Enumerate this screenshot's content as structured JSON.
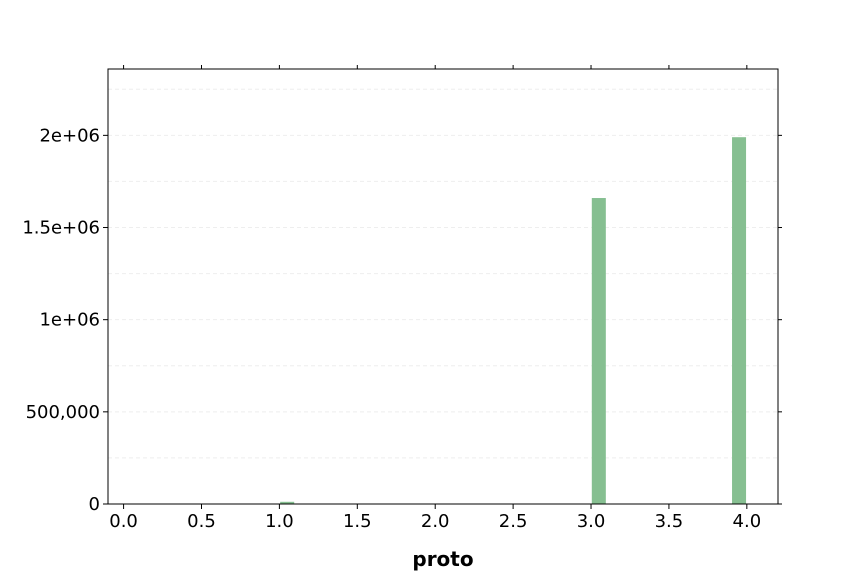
{
  "chart_data": {
    "type": "bar",
    "title": "",
    "xlabel": "proto",
    "ylabel": "",
    "x": [
      1.05,
      3.05,
      3.95
    ],
    "values": [
      12000,
      1660000,
      1990000
    ],
    "bar_width": 0.09,
    "xlim": [
      -0.1,
      4.2
    ],
    "ylim": [
      0,
      2360000
    ],
    "xticks": [
      0.0,
      0.5,
      1.0,
      1.5,
      2.0,
      2.5,
      3.0,
      3.5,
      4.0
    ],
    "xtick_labels": [
      "0.0",
      "0.5",
      "1.0",
      "1.5",
      "2.0",
      "2.5",
      "3.0",
      "3.5",
      "4.0"
    ],
    "yticks": [
      0,
      500000,
      1000000,
      1500000,
      2000000
    ],
    "ytick_labels": [
      "0",
      "500,000",
      "1e+06",
      "1.5e+06",
      "2e+06"
    ],
    "grid": true,
    "legend": "none",
    "colors": {
      "bar": "#86bf91",
      "grid": "#eeeeee",
      "axis": "#000000"
    }
  }
}
